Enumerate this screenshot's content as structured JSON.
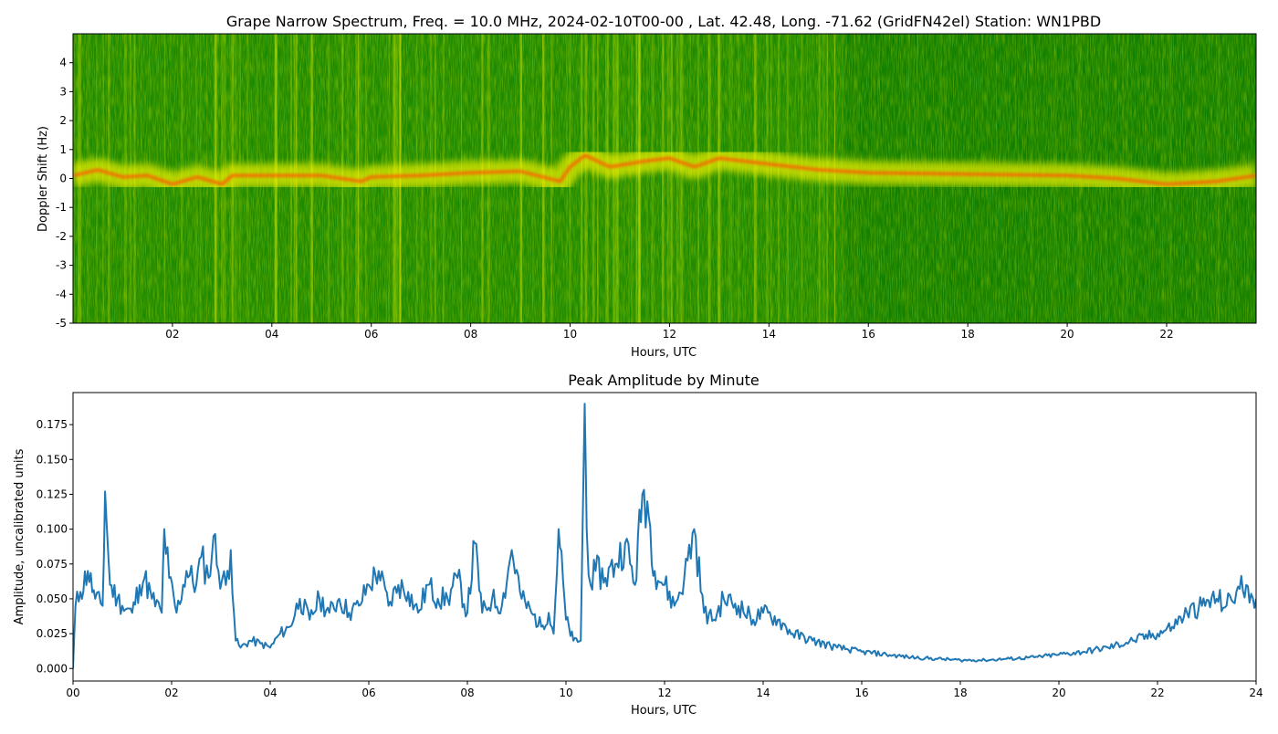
{
  "colors": {
    "spectrum_background": "#1e8a00",
    "spectrum_dark": "#0a7a00",
    "spectrum_mid": "#8cc800",
    "spectrum_yellow": "#f0f000",
    "spectrum_peak": "#ff5a00",
    "line_color": "#1f77b4"
  },
  "chart_data": [
    {
      "type": "heatmap",
      "title": "Grape Narrow Spectrum, Freq. = 10.0 MHz, 2024-02-10T00-00 , Lat.  42.48, Long. -71.62 (GridFN42el) Station: WN1PBD",
      "xlabel": "Hours, UTC",
      "ylabel": "Doppler Shift (Hz)",
      "xlim": [
        0,
        23.8
      ],
      "ylim": [
        -5,
        5
      ],
      "x_ticks": [
        2,
        4,
        6,
        8,
        10,
        12,
        14,
        16,
        18,
        20,
        22
      ],
      "x_tick_labels": [
        "02",
        "04",
        "06",
        "08",
        "10",
        "12",
        "14",
        "16",
        "18",
        "20",
        "22"
      ],
      "y_ticks": [
        -5,
        -4,
        -3,
        -2,
        -1,
        0,
        1,
        2,
        3,
        4
      ],
      "y_tick_labels": [
        "-5",
        "-4",
        "-3",
        "-2",
        "-1",
        "0",
        "1",
        "2",
        "3",
        "4"
      ],
      "grid": false,
      "peak_doppler_track": {
        "hours": [
          0,
          0.5,
          1,
          1.5,
          2,
          2.5,
          3,
          3.2,
          4,
          5,
          5.8,
          6,
          7,
          8,
          9,
          9.8,
          10,
          10.3,
          10.8,
          11.5,
          12,
          12.5,
          13,
          14,
          15,
          16,
          18,
          20,
          21,
          22,
          23,
          23.8
        ],
        "doppler_hz": [
          0.1,
          0.3,
          0.05,
          0.1,
          -0.2,
          0.05,
          -0.2,
          0.1,
          0.1,
          0.1,
          -0.1,
          0.05,
          0.1,
          0.2,
          0.25,
          -0.1,
          0.4,
          0.8,
          0.4,
          0.6,
          0.7,
          0.4,
          0.7,
          0.5,
          0.3,
          0.2,
          0.15,
          0.1,
          0,
          -0.2,
          -0.1,
          0.1
        ]
      }
    },
    {
      "type": "line",
      "title": "Peak Amplitude by Minute",
      "xlabel": "Hours, UTC",
      "ylabel": "Amplitude, uncalibrated units",
      "xlim": [
        0,
        24
      ],
      "ylim": [
        -0.009,
        0.198
      ],
      "x_ticks": [
        0,
        2,
        4,
        6,
        8,
        10,
        12,
        14,
        16,
        18,
        20,
        22,
        24
      ],
      "x_tick_labels": [
        "00",
        "02",
        "04",
        "06",
        "08",
        "10",
        "12",
        "14",
        "16",
        "18",
        "20",
        "22",
        "24"
      ],
      "y_ticks": [
        0,
        0.025,
        0.05,
        0.075,
        0.1,
        0.125,
        0.15,
        0.175
      ],
      "y_tick_labels": [
        "0.000",
        "0.025",
        "0.050",
        "0.075",
        "0.100",
        "0.125",
        "0.150",
        "0.175"
      ],
      "grid": false,
      "x": [
        0,
        0.05,
        0.15,
        0.3,
        0.45,
        0.6,
        0.65,
        0.75,
        0.9,
        1.0,
        1.2,
        1.35,
        1.45,
        1.6,
        1.8,
        1.85,
        1.95,
        2.1,
        2.3,
        2.5,
        2.6,
        2.75,
        2.85,
        2.95,
        3.1,
        3.2,
        3.3,
        3.4,
        3.6,
        3.8,
        4.0,
        4.2,
        4.4,
        4.6,
        4.8,
        5.0,
        5.2,
        5.4,
        5.6,
        5.8,
        6.0,
        6.2,
        6.4,
        6.6,
        6.8,
        7.0,
        7.2,
        7.4,
        7.6,
        7.8,
        8.0,
        8.15,
        8.3,
        8.5,
        8.7,
        8.9,
        9.1,
        9.3,
        9.5,
        9.65,
        9.75,
        9.85,
        10.0,
        10.15,
        10.3,
        10.38,
        10.42,
        10.5,
        10.6,
        10.8,
        11.0,
        11.2,
        11.4,
        11.55,
        11.65,
        11.8,
        12.0,
        12.2,
        12.4,
        12.6,
        12.8,
        13.0,
        13.2,
        13.5,
        13.8,
        14.0,
        14.3,
        14.6,
        15.0,
        15.5,
        16.0,
        16.5,
        17.0,
        17.5,
        18.0,
        18.5,
        19.0,
        19.5,
        20.0,
        20.5,
        21.0,
        21.5,
        22.0,
        22.3,
        22.6,
        22.9,
        23.2,
        23.4,
        23.6,
        23.8,
        24.0
      ],
      "values": [
        0.0,
        0.045,
        0.055,
        0.07,
        0.05,
        0.045,
        0.127,
        0.06,
        0.05,
        0.045,
        0.04,
        0.06,
        0.065,
        0.05,
        0.04,
        0.1,
        0.065,
        0.04,
        0.07,
        0.06,
        0.08,
        0.065,
        0.095,
        0.07,
        0.06,
        0.085,
        0.02,
        0.015,
        0.02,
        0.018,
        0.015,
        0.025,
        0.03,
        0.05,
        0.035,
        0.05,
        0.04,
        0.05,
        0.04,
        0.045,
        0.06,
        0.07,
        0.045,
        0.06,
        0.055,
        0.04,
        0.06,
        0.05,
        0.05,
        0.065,
        0.04,
        0.09,
        0.04,
        0.05,
        0.045,
        0.085,
        0.05,
        0.04,
        0.03,
        0.04,
        0.025,
        0.1,
        0.035,
        0.02,
        0.02,
        0.19,
        0.1,
        0.06,
        0.07,
        0.065,
        0.075,
        0.09,
        0.06,
        0.125,
        0.12,
        0.07,
        0.06,
        0.045,
        0.065,
        0.1,
        0.04,
        0.035,
        0.05,
        0.045,
        0.035,
        0.04,
        0.035,
        0.025,
        0.02,
        0.015,
        0.012,
        0.01,
        0.008,
        0.007,
        0.006,
        0.006,
        0.007,
        0.008,
        0.01,
        0.012,
        0.015,
        0.02,
        0.025,
        0.03,
        0.04,
        0.045,
        0.05,
        0.045,
        0.055,
        0.06,
        0.05
      ]
    }
  ]
}
